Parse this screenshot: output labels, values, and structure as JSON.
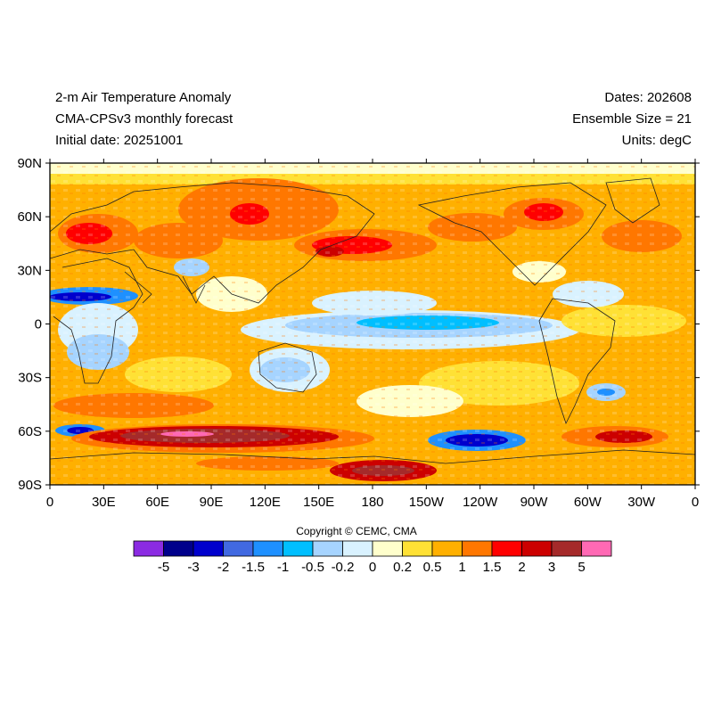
{
  "header": {
    "title": "2-m Air Temperature Anomaly",
    "model": "CMA-CPSv3 monthly forecast",
    "initial_date": "Initial date: 20251001",
    "dates": "Dates: 202608",
    "ensemble": "Ensemble Size = 21",
    "units": "Units: degC"
  },
  "map": {
    "lat_ticks": [
      "90N",
      "60N",
      "30N",
      "0",
      "30S",
      "60S",
      "90S"
    ],
    "lon_ticks": [
      "0",
      "30E",
      "60E",
      "90E",
      "120E",
      "150E",
      "180",
      "150W",
      "120W",
      "90W",
      "60W",
      "30W",
      "0"
    ],
    "projection": "cylindrical-equidistant",
    "lon_range": [
      0,
      360
    ],
    "lat_range": [
      -90,
      90
    ]
  },
  "copyright": "Copyright © CEMC, CMA",
  "colorbar": {
    "colors": [
      "#8b2be2",
      "#00008b",
      "#0000cd",
      "#4169e1",
      "#1e90ff",
      "#00bfff",
      "#a6d4ff",
      "#d9f2ff",
      "#ffffcc",
      "#ffe135",
      "#ffb000",
      "#ff7700",
      "#ff0000",
      "#cc0000",
      "#a52a2a",
      "#ff69b4"
    ],
    "labels": [
      "-5",
      "-3",
      "-2",
      "-1.5",
      "-1",
      "-0.5",
      "-0.2",
      "0",
      "0.2",
      "0.5",
      "1",
      "1.5",
      "2",
      "3",
      "5"
    ]
  }
}
